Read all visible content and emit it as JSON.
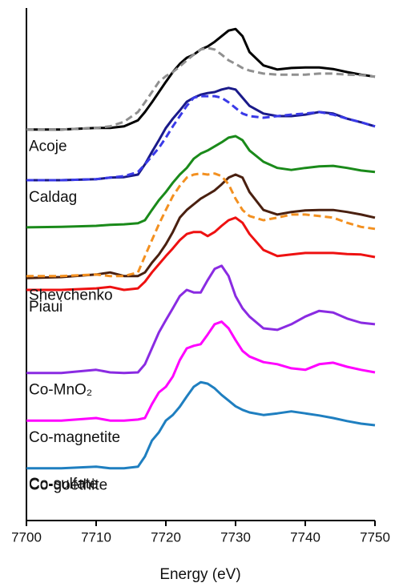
{
  "chart_data": {
    "type": "line",
    "x_label": "Energy (eV)",
    "xlim": [
      7700,
      7750
    ],
    "xticks": [
      7700,
      7710,
      7720,
      7730,
      7740,
      7750
    ],
    "ylim": [
      0,
      10
    ],
    "x": [
      7700,
      7705,
      7710,
      7712,
      7714,
      7716,
      7717,
      7718,
      7719,
      7720,
      7721,
      7722,
      7723,
      7724,
      7725,
      7726,
      7727,
      7728,
      7729,
      7730,
      7731,
      7732,
      7734,
      7736,
      7738,
      7740,
      7742,
      7744,
      7746,
      7748,
      7750
    ],
    "series": [
      {
        "name": "Acoje",
        "color": "#000000",
        "dashed": false,
        "values": [
          7.63,
          7.63,
          7.66,
          7.66,
          7.69,
          7.81,
          7.97,
          8.16,
          8.36,
          8.56,
          8.75,
          8.91,
          9.03,
          9.09,
          9.19,
          9.25,
          9.34,
          9.45,
          9.56,
          9.59,
          9.45,
          9.14,
          8.88,
          8.8,
          8.83,
          8.84,
          8.84,
          8.81,
          8.75,
          8.7,
          8.66
        ]
      },
      {
        "color": "#909090",
        "dashed": true,
        "values": [
          7.63,
          7.63,
          7.66,
          7.69,
          7.78,
          7.97,
          8.16,
          8.36,
          8.56,
          8.67,
          8.75,
          8.86,
          8.98,
          9.09,
          9.19,
          9.22,
          9.19,
          9.09,
          8.98,
          8.91,
          8.83,
          8.78,
          8.72,
          8.7,
          8.7,
          8.7,
          8.72,
          8.72,
          8.7,
          8.69,
          8.66
        ]
      },
      {
        "name": "Caldag",
        "color": "#1a1a8a",
        "dashed": false,
        "values": [
          6.64,
          6.64,
          6.66,
          6.69,
          6.7,
          6.75,
          6.95,
          7.19,
          7.42,
          7.66,
          7.84,
          8.0,
          8.17,
          8.25,
          8.31,
          8.34,
          8.36,
          8.41,
          8.44,
          8.41,
          8.25,
          8.09,
          7.94,
          7.89,
          7.89,
          7.92,
          7.97,
          7.94,
          7.84,
          7.77,
          7.69
        ]
      },
      {
        "color": "#3a3ae8",
        "dashed": true,
        "values": [
          6.64,
          6.64,
          6.66,
          6.69,
          6.72,
          6.8,
          6.95,
          7.11,
          7.27,
          7.47,
          7.69,
          7.89,
          8.09,
          8.25,
          8.28,
          8.28,
          8.28,
          8.25,
          8.16,
          8.05,
          7.94,
          7.89,
          7.86,
          7.89,
          7.92,
          7.94,
          7.97,
          7.92,
          7.84,
          7.77,
          7.69
        ]
      },
      {
        "color": "#1a8a1a",
        "dashed": false,
        "values": [
          5.72,
          5.73,
          5.75,
          5.77,
          5.78,
          5.8,
          5.86,
          6.06,
          6.25,
          6.41,
          6.59,
          6.75,
          6.88,
          7.06,
          7.16,
          7.22,
          7.3,
          7.38,
          7.47,
          7.5,
          7.42,
          7.22,
          7.0,
          6.88,
          6.84,
          6.88,
          6.91,
          6.92,
          6.88,
          6.83,
          6.8
        ]
      },
      {
        "name": "Shevchenko",
        "color": "#4a2010",
        "dashed": false,
        "values": [
          4.73,
          4.75,
          4.8,
          4.84,
          4.77,
          4.77,
          4.84,
          5.03,
          5.19,
          5.39,
          5.63,
          5.91,
          6.06,
          6.17,
          6.28,
          6.36,
          6.44,
          6.56,
          6.69,
          6.75,
          6.69,
          6.41,
          6.06,
          5.97,
          6.02,
          6.05,
          6.06,
          6.06,
          6.02,
          5.97,
          5.91
        ]
      },
      {
        "color": "#f39020",
        "dashed": true,
        "values": [
          4.77,
          4.77,
          4.8,
          4.77,
          4.77,
          4.84,
          5.16,
          5.47,
          5.78,
          6.06,
          6.33,
          6.53,
          6.69,
          6.75,
          6.77,
          6.75,
          6.77,
          6.72,
          6.56,
          6.28,
          6.06,
          5.94,
          5.86,
          5.91,
          5.97,
          5.97,
          5.94,
          5.91,
          5.81,
          5.73,
          5.69
        ]
      },
      {
        "name": "Piaui",
        "color": "#ee1111",
        "dashed": false,
        "values": [
          4.5,
          4.5,
          4.53,
          4.56,
          4.5,
          4.53,
          4.66,
          4.84,
          5.0,
          5.16,
          5.31,
          5.47,
          5.59,
          5.63,
          5.63,
          5.55,
          5.63,
          5.75,
          5.86,
          5.91,
          5.81,
          5.59,
          5.28,
          5.16,
          5.19,
          5.22,
          5.22,
          5.22,
          5.2,
          5.19,
          5.14
        ]
      },
      {
        "name": "Co-MnO₂",
        "color": "#8a2be2",
        "dashed": false,
        "values": [
          2.88,
          2.88,
          2.94,
          2.89,
          2.88,
          2.89,
          3.05,
          3.36,
          3.67,
          3.91,
          4.14,
          4.38,
          4.5,
          4.45,
          4.45,
          4.69,
          4.91,
          4.97,
          4.77,
          4.38,
          4.14,
          3.98,
          3.75,
          3.72,
          3.83,
          3.98,
          4.09,
          4.06,
          3.94,
          3.86,
          3.83
        ]
      },
      {
        "name": "Co-magnetite",
        "color": "#ff00ff",
        "dashed": false,
        "values": [
          1.95,
          1.95,
          2.0,
          1.95,
          1.95,
          1.97,
          2.0,
          2.27,
          2.5,
          2.61,
          2.81,
          3.13,
          3.36,
          3.41,
          3.44,
          3.63,
          3.83,
          3.88,
          3.75,
          3.52,
          3.31,
          3.2,
          3.09,
          3.05,
          2.97,
          2.94,
          3.05,
          3.08,
          3.0,
          2.94,
          2.89
        ]
      },
      {
        "name": "Co-goethite",
        "color": "#1f7fc0",
        "dashed": false,
        "values": [
          1.02,
          1.02,
          1.05,
          1.02,
          1.02,
          1.05,
          1.25,
          1.56,
          1.72,
          1.95,
          2.06,
          2.22,
          2.42,
          2.61,
          2.7,
          2.67,
          2.58,
          2.45,
          2.34,
          2.23,
          2.16,
          2.11,
          2.06,
          2.09,
          2.13,
          2.09,
          2.05,
          2.0,
          1.94,
          1.89,
          1.86
        ]
      }
    ],
    "labels": [
      "Co-sulfate"
    ]
  }
}
